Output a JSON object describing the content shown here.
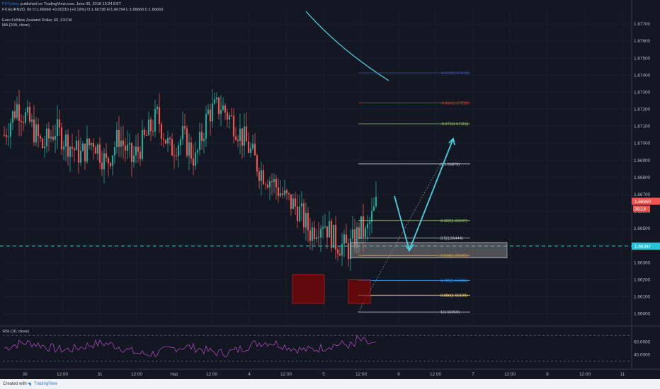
{
  "header": {
    "author": "FXTurkey",
    "published": "published on TradingView.com, June 05, 2018 13:24 EST",
    "symbol_line": "FX:EURNZD, 60",
    "ohlc": "O:1.66660 +0.00310 (+0.19%) O:1.66738 H:1.66794 L:1.66660 C:1.66660",
    "instrument": "Euro Fx/New Zealand Dollar, 60, FXCM",
    "ma_label": "MA (200, close)"
  },
  "footer": {
    "created_with": "Created with",
    "brand": "TradingView"
  },
  "chart_data": {
    "type": "candlestick",
    "symbol": "FX:EURNZD",
    "interval": "60",
    "ylim": [
      1.6594,
      1.678
    ],
    "y_ticks": [
      1.66,
      1.661,
      1.662,
      1.663,
      1.664,
      1.665,
      1.666,
      1.667,
      1.668,
      1.669,
      1.67,
      1.671,
      1.672,
      1.673,
      1.674,
      1.675,
      1.676,
      1.677
    ],
    "y_tick_labels": [
      "1.66000",
      "1.66100",
      "1.66200",
      "1.66300",
      "1.66400",
      "1.66500",
      "1.66600",
      "1.66700",
      "1.66800",
      "1.66900",
      "1.67000",
      "1.67100",
      "1.67200",
      "1.67300",
      "1.67400",
      "1.67500",
      "1.67600",
      "1.67700"
    ],
    "x_labels": [
      "30",
      "12:00",
      "31",
      "12:00",
      "Haz",
      "12:00",
      "4",
      "12:00",
      "5",
      "12:00",
      "6",
      "12:00",
      "7",
      "12:00",
      "8",
      "12:00",
      "11"
    ],
    "last_price": "1.66660",
    "countdown": "36:14",
    "horizontal_line": "1.66397",
    "fib_levels": [
      {
        "label": "-0.618(1.67414)",
        "value": 1.67414,
        "color": "#3f51b5"
      },
      {
        "label": "-0.414(1.67238)",
        "value": 1.67238,
        "color": "#e53935"
      },
      {
        "label": "-0.272(1.67115)",
        "value": 1.67115,
        "color": "#9ccc65"
      },
      {
        "label": "0(1.66879)",
        "value": 1.66879,
        "color": "#d1d4dc"
      },
      {
        "label": "0.382(1.66547)",
        "value": 1.66547,
        "color": "#9ccc65"
      },
      {
        "label": "0.5(1.66444)",
        "value": 1.66444,
        "color": "#d1d4dc"
      },
      {
        "label": "0.618(1.66342)",
        "value": 1.66342,
        "color": "#ff9800"
      },
      {
        "label": "0.786(1.66196)",
        "value": 1.66196,
        "color": "#42a5f5"
      },
      {
        "label": "0.886(1.66109)",
        "value": 1.66109,
        "color": "#ffeb3b"
      },
      {
        "label": "1(1.66010)",
        "value": 1.6601,
        "color": "#d1d4dc"
      }
    ],
    "rsi": {
      "label": "RSI (10, close)",
      "ylim": [
        20,
        80
      ],
      "ticks": [
        "60.0000",
        "40.0000"
      ],
      "band": [
        30,
        70
      ]
    },
    "colors": {
      "background": "#131722",
      "up": "#26a69a",
      "down": "#ef5350",
      "ma": "#4dd0e1",
      "arrow": "#4dd0e1",
      "rsi": "#ab47bc"
    }
  }
}
